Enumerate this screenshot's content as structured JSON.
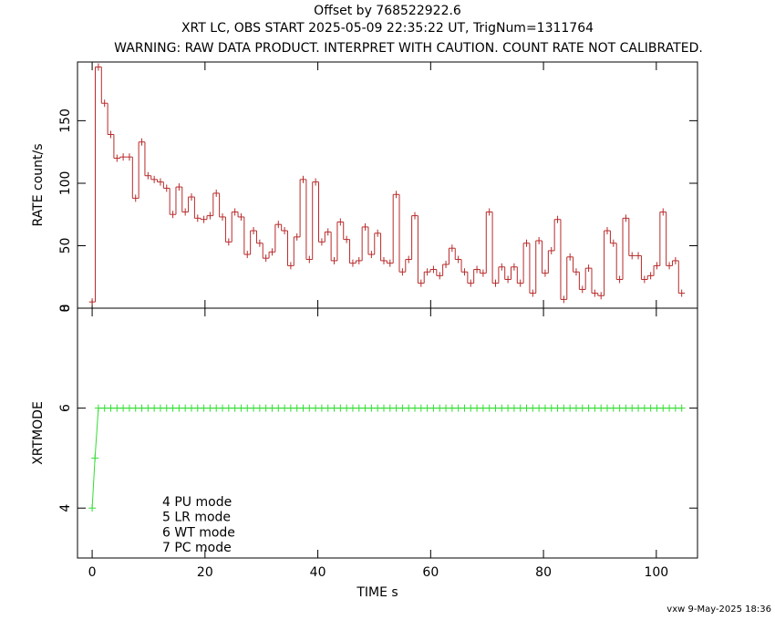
{
  "title": "Offset by 768522922.6",
  "subtitle": "XRT LC, OBS START 2025-05-09 22:35:22 UT, TrigNum=1311764",
  "warning": "WARNING: RAW DATA PRODUCT. INTERPRET WITH CAUTION. COUNT RATE NOT CALIBRATED.",
  "footer": "vxw  9-May-2025 18:36",
  "chart_data": [
    {
      "type": "step",
      "ylabel": "RATE  count/s",
      "color": "#b82a2a",
      "xlim": [
        -2.6,
        107.3
      ],
      "ylim": [
        0,
        197
      ],
      "yticks": [
        0,
        50,
        100,
        150
      ],
      "x": [
        0.0,
        1.1,
        2.2,
        3.3,
        4.4,
        5.5,
        6.6,
        7.7,
        8.8,
        9.9,
        11.0,
        12.1,
        13.2,
        14.3,
        15.4,
        16.5,
        17.6,
        18.7,
        19.8,
        20.9,
        22.0,
        23.1,
        24.2,
        25.3,
        26.4,
        27.5,
        28.6,
        29.7,
        30.8,
        31.9,
        33.0,
        34.1,
        35.2,
        36.3,
        37.4,
        38.5,
        39.6,
        40.7,
        41.8,
        42.9,
        44.0,
        45.1,
        46.2,
        47.3,
        48.4,
        49.5,
        50.6,
        51.7,
        52.8,
        53.9,
        55.0,
        56.1,
        57.2,
        58.3,
        59.4,
        60.5,
        61.6,
        62.7,
        63.8,
        64.9,
        66.0,
        67.1,
        68.2,
        69.3,
        70.4,
        71.5,
        72.6,
        73.7,
        74.8,
        75.9,
        77.0,
        78.1,
        79.2,
        80.3,
        81.4,
        82.5,
        83.6,
        84.7,
        85.8,
        86.9,
        88.0,
        89.1,
        90.2,
        91.3,
        92.4,
        93.5,
        94.6,
        95.7,
        96.8,
        97.9,
        99.0,
        100.1,
        101.2,
        102.3,
        103.4,
        104.5
      ],
      "values": [
        5,
        193,
        164,
        139,
        120,
        121,
        121,
        88,
        133,
        106,
        103,
        101,
        96,
        75,
        97,
        77,
        89,
        72,
        71,
        74,
        92,
        73,
        53,
        77,
        73,
        43,
        62,
        52,
        40,
        45,
        67,
        62,
        34,
        57,
        103,
        39,
        101,
        53,
        61,
        38,
        69,
        55,
        36,
        38,
        65,
        43,
        60,
        38,
        36,
        91,
        29,
        39,
        74,
        20,
        29,
        31,
        26,
        35,
        48,
        39,
        29,
        20,
        31,
        28,
        77,
        20,
        33,
        23,
        33,
        20,
        52,
        12,
        54,
        28,
        46,
        71,
        7,
        41,
        29,
        15,
        32,
        12,
        10,
        62,
        52,
        23,
        72,
        42,
        42,
        23,
        26,
        34,
        77,
        34,
        38,
        12
      ]
    },
    {
      "type": "scatter",
      "xlabel": "TIME  s",
      "ylabel": "XRTMODE",
      "color": "#33dd33",
      "xlim": [
        -2.6,
        107.3
      ],
      "ylim": [
        3,
        8
      ],
      "xticks": [
        0,
        20,
        40,
        60,
        80,
        100
      ],
      "yticks": [
        4,
        6,
        8
      ],
      "legend": [
        "4 PU mode",
        "5 LR mode",
        "6 WT mode",
        "7 PC mode"
      ],
      "x": [
        0.0,
        0.5,
        1.1,
        2.2,
        3.3,
        4.4,
        5.5,
        6.6,
        7.7,
        8.8,
        9.9,
        11.0,
        12.1,
        13.2,
        14.3,
        15.4,
        16.5,
        17.6,
        18.7,
        19.8,
        20.9,
        22.0,
        23.1,
        24.2,
        25.3,
        26.4,
        27.5,
        28.6,
        29.7,
        30.8,
        31.9,
        33.0,
        34.1,
        35.2,
        36.3,
        37.4,
        38.5,
        39.6,
        40.7,
        41.8,
        42.9,
        44.0,
        45.1,
        46.2,
        47.3,
        48.4,
        49.5,
        50.6,
        51.7,
        52.8,
        53.9,
        55.0,
        56.1,
        57.2,
        58.3,
        59.4,
        60.5,
        61.6,
        62.7,
        63.8,
        64.9,
        66.0,
        67.1,
        68.2,
        69.3,
        70.4,
        71.5,
        72.6,
        73.7,
        74.8,
        75.9,
        77.0,
        78.1,
        79.2,
        80.3,
        81.4,
        82.5,
        83.6,
        84.7,
        85.8,
        86.9,
        88.0,
        89.1,
        90.2,
        91.3,
        92.4,
        93.5,
        94.6,
        95.7,
        96.8,
        97.9,
        99.0,
        100.1,
        101.2,
        102.3,
        103.4,
        104.5
      ],
      "values": [
        4,
        5,
        6,
        6,
        6,
        6,
        6,
        6,
        6,
        6,
        6,
        6,
        6,
        6,
        6,
        6,
        6,
        6,
        6,
        6,
        6,
        6,
        6,
        6,
        6,
        6,
        6,
        6,
        6,
        6,
        6,
        6,
        6,
        6,
        6,
        6,
        6,
        6,
        6,
        6,
        6,
        6,
        6,
        6,
        6,
        6,
        6,
        6,
        6,
        6,
        6,
        6,
        6,
        6,
        6,
        6,
        6,
        6,
        6,
        6,
        6,
        6,
        6,
        6,
        6,
        6,
        6,
        6,
        6,
        6,
        6,
        6,
        6,
        6,
        6,
        6,
        6,
        6,
        6,
        6,
        6,
        6,
        6,
        6,
        6,
        6,
        6,
        6,
        6,
        6,
        6,
        6,
        6,
        6,
        6,
        6,
        6
      ]
    }
  ]
}
